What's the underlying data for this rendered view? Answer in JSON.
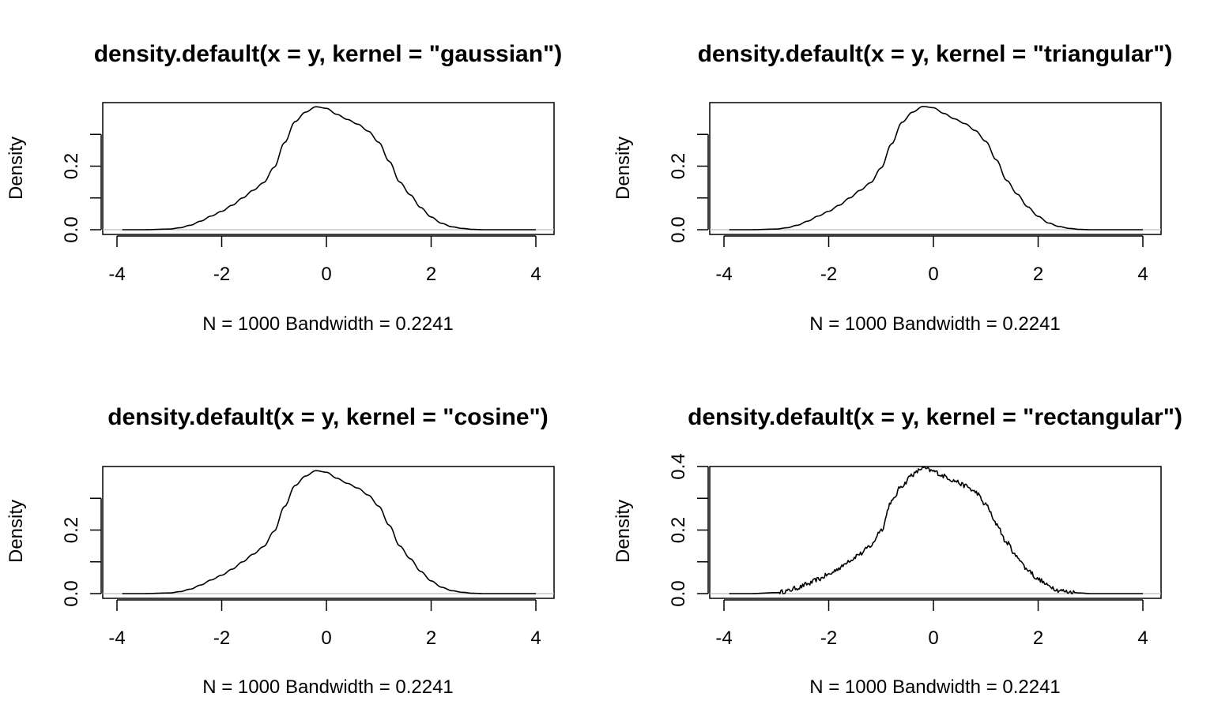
{
  "chart_data": [
    {
      "type": "line",
      "title": "density.default(x = y, kernel = \"gaussian\")",
      "xlabel": "N = 1000   Bandwidth = 0.2241",
      "ylabel": "Density",
      "xlim": [
        -4.3,
        4.3
      ],
      "ylim": [
        0,
        0.4
      ],
      "x_ticks": [
        -4,
        -2,
        0,
        2,
        4
      ],
      "x_tick_labels": [
        "-4",
        "-2",
        "0",
        "2",
        "4"
      ],
      "y_ticks": [
        0,
        0.1,
        0.2,
        0.3
      ],
      "y_tick_labels": [
        "0.0",
        "",
        "0.2",
        ""
      ],
      "rough": false,
      "series": [
        {
          "x": [
            -3.9,
            -3.5,
            -3.0,
            -2.8,
            -2.6,
            -2.4,
            -2.2,
            -2.0,
            -1.8,
            -1.6,
            -1.4,
            -1.2,
            -1.0,
            -0.8,
            -0.6,
            -0.4,
            -0.2,
            0.0,
            0.2,
            0.4,
            0.6,
            0.8,
            1.0,
            1.2,
            1.4,
            1.6,
            1.8,
            2.0,
            2.2,
            2.4,
            2.6,
            2.8,
            3.0,
            3.5,
            4.0
          ],
          "y": [
            0.0,
            0.0,
            0.002,
            0.006,
            0.014,
            0.027,
            0.043,
            0.058,
            0.077,
            0.1,
            0.124,
            0.148,
            0.196,
            0.274,
            0.34,
            0.37,
            0.387,
            0.382,
            0.363,
            0.347,
            0.332,
            0.31,
            0.275,
            0.215,
            0.15,
            0.11,
            0.07,
            0.04,
            0.02,
            0.009,
            0.004,
            0.001,
            0.0,
            0.0,
            0.0
          ]
        }
      ]
    },
    {
      "type": "line",
      "title": "density.default(x = y, kernel = \"triangular\")",
      "xlabel": "N = 1000   Bandwidth = 0.2241",
      "ylabel": "Density",
      "xlim": [
        -4.3,
        4.3
      ],
      "ylim": [
        0,
        0.4
      ],
      "x_ticks": [
        -4,
        -2,
        0,
        2,
        4
      ],
      "x_tick_labels": [
        "-4",
        "-2",
        "0",
        "2",
        "4"
      ],
      "y_ticks": [
        0,
        0.1,
        0.2,
        0.3
      ],
      "y_tick_labels": [
        "0.0",
        "",
        "0.2",
        ""
      ],
      "rough": false,
      "series": [
        {
          "x": [
            -3.9,
            -3.5,
            -3.0,
            -2.8,
            -2.6,
            -2.4,
            -2.2,
            -2.0,
            -1.8,
            -1.6,
            -1.4,
            -1.2,
            -1.0,
            -0.8,
            -0.6,
            -0.4,
            -0.2,
            0.0,
            0.2,
            0.4,
            0.6,
            0.8,
            1.0,
            1.2,
            1.4,
            1.6,
            1.8,
            2.0,
            2.2,
            2.4,
            2.6,
            2.8,
            3.0,
            3.5,
            4.0
          ],
          "y": [
            0.0,
            0.0,
            0.002,
            0.006,
            0.014,
            0.027,
            0.043,
            0.058,
            0.077,
            0.1,
            0.124,
            0.148,
            0.194,
            0.27,
            0.338,
            0.37,
            0.388,
            0.384,
            0.366,
            0.349,
            0.334,
            0.312,
            0.278,
            0.22,
            0.155,
            0.112,
            0.072,
            0.042,
            0.021,
            0.01,
            0.004,
            0.001,
            0.0,
            0.0,
            0.0
          ]
        }
      ]
    },
    {
      "type": "line",
      "title": "density.default(x = y, kernel = \"cosine\")",
      "xlabel": "N = 1000   Bandwidth = 0.2241",
      "ylabel": "Density",
      "xlim": [
        -4.3,
        4.3
      ],
      "ylim": [
        0,
        0.4
      ],
      "x_ticks": [
        -4,
        -2,
        0,
        2,
        4
      ],
      "x_tick_labels": [
        "-4",
        "-2",
        "0",
        "2",
        "4"
      ],
      "y_ticks": [
        0,
        0.1,
        0.2,
        0.3
      ],
      "y_tick_labels": [
        "0.0",
        "",
        "0.2",
        ""
      ],
      "rough": false,
      "series": [
        {
          "x": [
            -3.9,
            -3.5,
            -3.0,
            -2.8,
            -2.6,
            -2.4,
            -2.2,
            -2.0,
            -1.8,
            -1.6,
            -1.4,
            -1.2,
            -1.0,
            -0.8,
            -0.6,
            -0.4,
            -0.2,
            0.0,
            0.2,
            0.4,
            0.6,
            0.8,
            1.0,
            1.2,
            1.4,
            1.6,
            1.8,
            2.0,
            2.2,
            2.4,
            2.6,
            2.8,
            3.0,
            3.5,
            4.0
          ],
          "y": [
            0.0,
            0.0,
            0.002,
            0.006,
            0.014,
            0.027,
            0.043,
            0.058,
            0.077,
            0.1,
            0.124,
            0.148,
            0.196,
            0.274,
            0.34,
            0.37,
            0.387,
            0.382,
            0.363,
            0.347,
            0.332,
            0.31,
            0.275,
            0.215,
            0.15,
            0.11,
            0.07,
            0.04,
            0.02,
            0.009,
            0.004,
            0.001,
            0.0,
            0.0,
            0.0
          ]
        }
      ]
    },
    {
      "type": "line",
      "title": "density.default(x = y, kernel = \"rectangular\")",
      "xlabel": "N = 1000   Bandwidth = 0.2241",
      "ylabel": "Density",
      "xlim": [
        -4.3,
        4.3
      ],
      "ylim": [
        0,
        0.4
      ],
      "x_ticks": [
        -4,
        -2,
        0,
        2,
        4
      ],
      "x_tick_labels": [
        "-4",
        "-2",
        "0",
        "2",
        "4"
      ],
      "y_ticks": [
        0,
        0.1,
        0.2,
        0.3,
        0.4
      ],
      "y_tick_labels": [
        "0.0",
        "",
        "0.2",
        "",
        "0.4"
      ],
      "rough": true,
      "series": [
        {
          "x": [
            -3.9,
            -3.5,
            -3.0,
            -2.8,
            -2.6,
            -2.4,
            -2.2,
            -2.0,
            -1.8,
            -1.6,
            -1.4,
            -1.2,
            -1.0,
            -0.8,
            -0.6,
            -0.4,
            -0.2,
            0.0,
            0.2,
            0.4,
            0.6,
            0.8,
            1.0,
            1.2,
            1.4,
            1.6,
            1.8,
            2.0,
            2.2,
            2.4,
            2.6,
            2.8,
            3.0,
            3.5,
            4.0
          ],
          "y": [
            0.0,
            0.0,
            0.003,
            0.008,
            0.018,
            0.03,
            0.045,
            0.06,
            0.08,
            0.105,
            0.125,
            0.15,
            0.2,
            0.29,
            0.34,
            0.375,
            0.395,
            0.385,
            0.37,
            0.355,
            0.34,
            0.32,
            0.28,
            0.22,
            0.16,
            0.115,
            0.075,
            0.045,
            0.025,
            0.01,
            0.005,
            0.002,
            0.0,
            0.0,
            0.0
          ]
        }
      ]
    }
  ]
}
